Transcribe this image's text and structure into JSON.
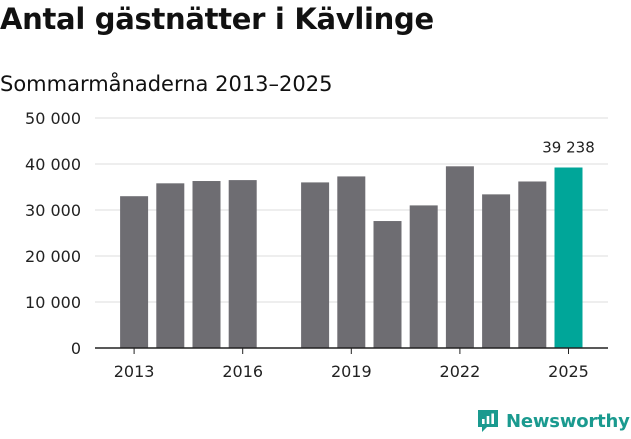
{
  "title": "Antal gästnätter i Kävlinge",
  "subtitle": "Sommarmånaderna 2013–2025",
  "brand": {
    "name": "Newsworthy",
    "color": "#1a9a8f"
  },
  "chart_data": {
    "type": "bar",
    "categories": [
      "2013",
      "2014",
      "2015",
      "2016",
      "2017",
      "2018",
      "2019",
      "2020",
      "2021",
      "2022",
      "2023",
      "2024",
      "2025"
    ],
    "values": [
      33000,
      35800,
      36300,
      36500,
      null,
      36000,
      37300,
      27600,
      31000,
      39500,
      33400,
      36200,
      39238
    ],
    "x_tick_labels": [
      "2013",
      "2016",
      "2019",
      "2022",
      "2025"
    ],
    "y_ticks": [
      0,
      10000,
      20000,
      30000,
      40000,
      50000
    ],
    "y_tick_labels": [
      "0",
      "10 000",
      "20 000",
      "30 000",
      "40 000",
      "50 000"
    ],
    "ylim": [
      0,
      50000
    ],
    "grid": true,
    "bar_color": "#6e6d72",
    "highlight_color": "#00a699",
    "highlight_index": 12,
    "annotation": {
      "category": "2025",
      "text": "39 238"
    }
  }
}
